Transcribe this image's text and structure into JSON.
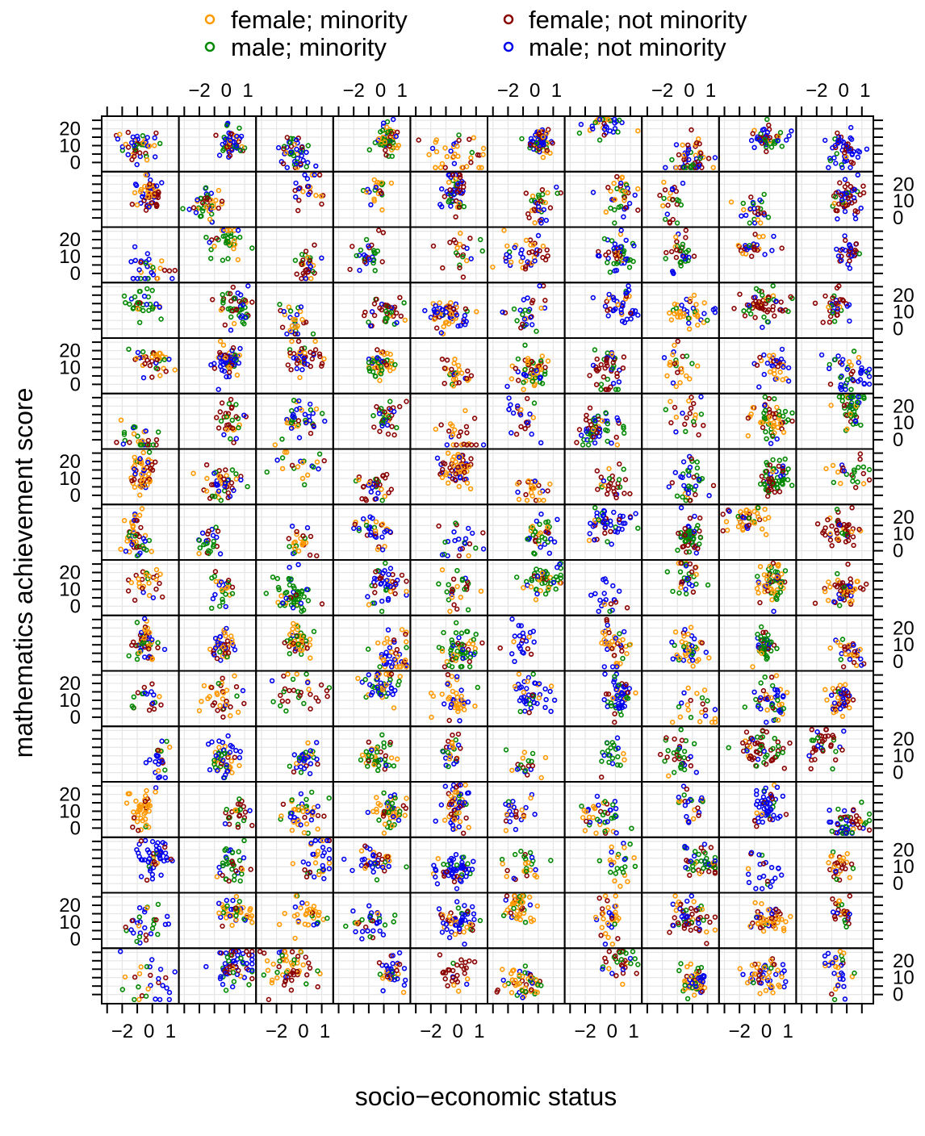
{
  "chart_data": {
    "type": "scatter",
    "layout": "trellis-grid",
    "panel_columns": 10,
    "panel_rows": 16,
    "xlabel": "socio−economic status",
    "ylabel": "mathematics achievement score",
    "x_ticks": [
      "−2",
      "0",
      "1"
    ],
    "x_tick_values": [
      -2,
      0,
      1
    ],
    "y_ticks": [
      "0",
      "10",
      "20"
    ],
    "y_tick_values": [
      0,
      10,
      20
    ],
    "xlim": [
      -3.2,
      1.6
    ],
    "ylim": [
      -4,
      26
    ],
    "grid": true,
    "legend_position": "top",
    "series": [
      {
        "name": "female; minority",
        "color": "#ff9900"
      },
      {
        "name": "female; not minority",
        "color": "#8b0000"
      },
      {
        "name": "male; minority",
        "color": "#008800"
      },
      {
        "name": "male; not minority",
        "color": "#0000ee"
      }
    ]
  }
}
